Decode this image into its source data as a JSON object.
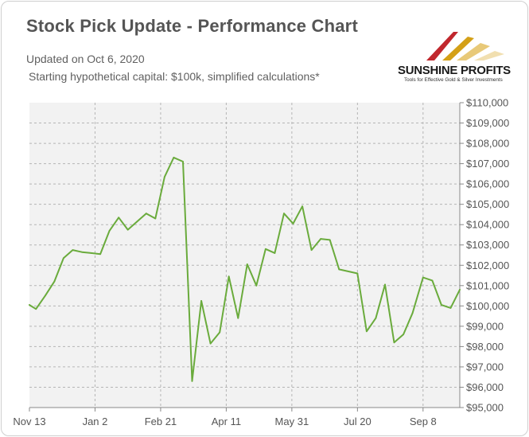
{
  "header": {
    "title": "Stock Pick Update - Performance Chart",
    "updated": "Updated on Oct 6, 2020",
    "note": "Starting hypothetical capital: $100k, simplified calculations*"
  },
  "logo": {
    "name": "SUNSHINE PROFITS",
    "tagline": "Tools for Effective Gold & Silver Investments"
  },
  "colors": {
    "line": "#6aab3c",
    "plot_background": "#f2f2f2",
    "grid": "#b5b5b5"
  },
  "chart_data": {
    "type": "line",
    "title": "Stock Pick Update - Performance Chart",
    "xlabel": "",
    "ylabel": "",
    "x_tick_labels": [
      "Nov 13",
      "Jan 2",
      "Feb 21",
      "Apr 11",
      "May 31",
      "Jul 20",
      "Sep 8"
    ],
    "y_tick_labels": [
      "$95,000",
      "$96,000",
      "$97,000",
      "$98,000",
      "$99,000",
      "$100,000",
      "$101,000",
      "$102,000",
      "$103,000",
      "$104,000",
      "$105,000",
      "$106,000",
      "$107,000",
      "$108,000",
      "$109,000",
      "$110,000"
    ],
    "ylim": [
      95000,
      110000
    ],
    "xlim": [
      "2019-11-13",
      "2020-10-06"
    ],
    "grid": true,
    "y_axis_position": "right",
    "series": [
      {
        "values": [
          {
            "x": "2019-11-13",
            "y": 100050
          },
          {
            "x": "2019-11-18",
            "y": 99850
          },
          {
            "x": "2019-11-25",
            "y": 100500
          },
          {
            "x": "2019-12-02",
            "y": 101200
          },
          {
            "x": "2019-12-09",
            "y": 102350
          },
          {
            "x": "2019-12-16",
            "y": 102750
          },
          {
            "x": "2019-12-23",
            "y": 102650
          },
          {
            "x": "2019-12-30",
            "y": 102600
          },
          {
            "x": "2020-01-06",
            "y": 102550
          },
          {
            "x": "2020-01-13",
            "y": 103700
          },
          {
            "x": "2020-01-20",
            "y": 104350
          },
          {
            "x": "2020-01-27",
            "y": 103750
          },
          {
            "x": "2020-02-03",
            "y": 104150
          },
          {
            "x": "2020-02-10",
            "y": 104550
          },
          {
            "x": "2020-02-17",
            "y": 104300
          },
          {
            "x": "2020-02-24",
            "y": 106350
          },
          {
            "x": "2020-03-02",
            "y": 107300
          },
          {
            "x": "2020-03-09",
            "y": 107100
          },
          {
            "x": "2020-03-16",
            "y": 96300
          },
          {
            "x": "2020-03-23",
            "y": 100250
          },
          {
            "x": "2020-03-30",
            "y": 98150
          },
          {
            "x": "2020-04-06",
            "y": 98700
          },
          {
            "x": "2020-04-13",
            "y": 101450
          },
          {
            "x": "2020-04-20",
            "y": 99400
          },
          {
            "x": "2020-04-27",
            "y": 102050
          },
          {
            "x": "2020-05-04",
            "y": 101000
          },
          {
            "x": "2020-05-11",
            "y": 102800
          },
          {
            "x": "2020-05-18",
            "y": 102600
          },
          {
            "x": "2020-05-25",
            "y": 104550
          },
          {
            "x": "2020-06-01",
            "y": 104050
          },
          {
            "x": "2020-06-08",
            "y": 104900
          },
          {
            "x": "2020-06-15",
            "y": 102750
          },
          {
            "x": "2020-06-22",
            "y": 103300
          },
          {
            "x": "2020-06-29",
            "y": 103250
          },
          {
            "x": "2020-07-06",
            "y": 101800
          },
          {
            "x": "2020-07-20",
            "y": 101600
          },
          {
            "x": "2020-07-27",
            "y": 98750
          },
          {
            "x": "2020-08-03",
            "y": 99400
          },
          {
            "x": "2020-08-10",
            "y": 101050
          },
          {
            "x": "2020-08-17",
            "y": 98200
          },
          {
            "x": "2020-08-24",
            "y": 98600
          },
          {
            "x": "2020-08-31",
            "y": 99650
          },
          {
            "x": "2020-09-08",
            "y": 101400
          },
          {
            "x": "2020-09-15",
            "y": 101250
          },
          {
            "x": "2020-09-22",
            "y": 100050
          },
          {
            "x": "2020-09-29",
            "y": 99900
          },
          {
            "x": "2020-10-06",
            "y": 100800
          }
        ]
      }
    ]
  }
}
